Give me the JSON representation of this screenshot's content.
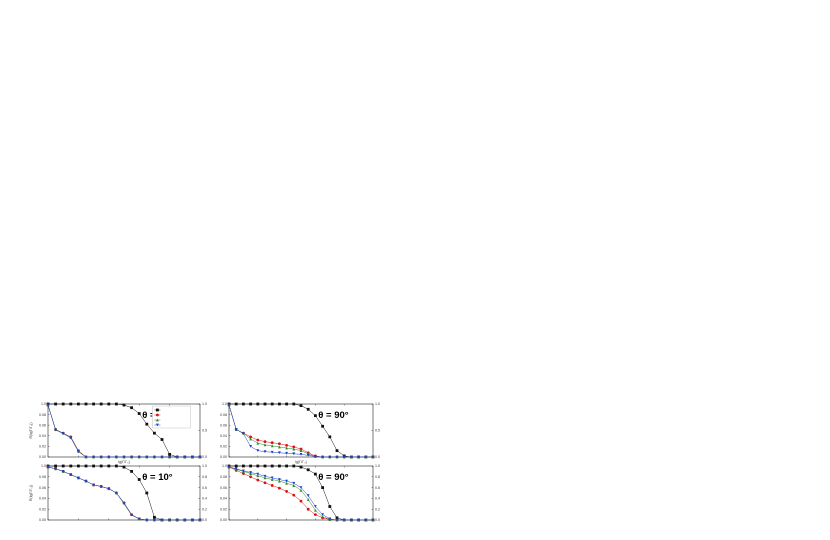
{
  "colors": {
    "black_series": "#111111",
    "red_series": "#dd1111",
    "green_series": "#2a8a2a",
    "blue_series": "#1a3fd0",
    "axis": "#222222"
  },
  "chart_data": [
    {
      "type": "line",
      "panel": "top-left",
      "angle_label": "θ = 10°",
      "xlabel": "lg(Γ/Γ₀)",
      "ylabel": "R(lg|Γ/Γ₀|)",
      "xlim": [
        -9,
        1
      ],
      "ylim": [
        0,
        1
      ],
      "y_ticks": [
        "0.00",
        "0.02",
        "0.04",
        "0.06",
        "0.08",
        "1.0"
      ],
      "right_ticks": [
        "1.0",
        "0.5",
        "0.0"
      ],
      "grid": false,
      "legend_position": "top-right",
      "legend": [
        "",
        "",
        "",
        ""
      ],
      "series": [
        {
          "color": "black",
          "marker": "square",
          "x": [
            -9,
            -8.5,
            -8,
            -7.5,
            -7,
            -6.5,
            -6,
            -5.5,
            -5,
            -4.5,
            -4,
            -3.5,
            -3,
            -2.5,
            -2,
            -1.5,
            -1,
            -0.5,
            0,
            0.5,
            1
          ],
          "y": [
            1.0,
            1.0,
            1.0,
            1.0,
            1.0,
            1.0,
            1.0,
            1.0,
            1.0,
            1.0,
            0.98,
            0.93,
            0.82,
            0.62,
            0.45,
            0.33,
            0.05,
            0.0,
            0.0,
            0.0,
            0.0
          ]
        },
        {
          "color": "red",
          "marker": "circle",
          "x": [
            -9,
            -8.5,
            -8,
            -7.5,
            -7,
            -6.5,
            -6,
            -5.5,
            -5,
            -4.5,
            -4,
            -3.5,
            -3,
            -2.5,
            -2,
            -1.5,
            -1,
            -0.5,
            0,
            0.5,
            1
          ],
          "y": [
            0.98,
            0.52,
            0.45,
            0.38,
            0.12,
            0.0,
            0.0,
            0.0,
            0.0,
            0.0,
            0.0,
            0.0,
            0.0,
            0.0,
            0.0,
            0.0,
            0.0,
            0.0,
            0.0,
            0.0,
            0.0
          ]
        },
        {
          "color": "green",
          "marker": "triangle-up",
          "x": [
            -9,
            -8.5,
            -8,
            -7.5,
            -7,
            -6.5,
            -6,
            -5.5,
            -5,
            -4.5,
            -4,
            -3.5,
            -3,
            -2.5,
            -2,
            -1.5,
            -1,
            -0.5,
            0,
            0.5,
            1
          ],
          "y": [
            0.98,
            0.52,
            0.45,
            0.37,
            0.11,
            0.0,
            0.0,
            0.0,
            0.0,
            0.0,
            0.0,
            0.0,
            0.0,
            0.0,
            0.0,
            0.0,
            0.0,
            0.0,
            0.0,
            0.0,
            0.0
          ]
        },
        {
          "color": "blue",
          "marker": "triangle-down",
          "x": [
            -9,
            -8.5,
            -8,
            -7.5,
            -7,
            -6.5,
            -6,
            -5.5,
            -5,
            -4.5,
            -4,
            -3.5,
            -3,
            -2.5,
            -2,
            -1.5,
            -1,
            -0.5,
            0,
            0.5,
            1
          ],
          "y": [
            0.98,
            0.51,
            0.44,
            0.36,
            0.1,
            0.0,
            0.0,
            0.0,
            0.0,
            0.0,
            0.0,
            0.0,
            0.0,
            0.0,
            0.0,
            0.0,
            0.0,
            0.0,
            0.0,
            0.0,
            0.0
          ]
        }
      ]
    },
    {
      "type": "line",
      "panel": "top-right",
      "angle_label": "θ = 90°",
      "xlabel": "lg(Γ/Γ₀)",
      "ylabel": "",
      "xlim": [
        -9,
        1
      ],
      "ylim": [
        0,
        1
      ],
      "y_ticks": [
        "0.00",
        "0.02",
        "0.04",
        "0.06",
        "0.08",
        "1.0"
      ],
      "right_ticks": [
        "1.0",
        "0.5",
        "0.0"
      ],
      "grid": false,
      "series": [
        {
          "color": "black",
          "marker": "square",
          "x": [
            -9,
            -8.5,
            -8,
            -7.5,
            -7,
            -6.5,
            -6,
            -5.5,
            -5,
            -4.5,
            -4,
            -3.5,
            -3,
            -2.5,
            -2,
            -1.5,
            -1,
            -0.5,
            0,
            0.5,
            1
          ],
          "y": [
            1.0,
            1.0,
            1.0,
            1.0,
            1.0,
            1.0,
            1.0,
            1.0,
            1.0,
            1.0,
            0.97,
            0.9,
            0.78,
            0.58,
            0.38,
            0.12,
            0.02,
            0.0,
            0.0,
            0.0,
            0.0
          ]
        },
        {
          "color": "red",
          "marker": "circle",
          "x": [
            -9,
            -8.5,
            -8,
            -7.5,
            -7,
            -6.5,
            -6,
            -5.5,
            -5,
            -4.5,
            -4,
            -3.5,
            -3,
            -2.5,
            -2,
            -1.5,
            -1,
            -0.5,
            0,
            0.5,
            1
          ],
          "y": [
            0.98,
            0.52,
            0.45,
            0.38,
            0.32,
            0.29,
            0.27,
            0.25,
            0.22,
            0.19,
            0.15,
            0.08,
            0.02,
            0.0,
            0.0,
            0.0,
            0.0,
            0.0,
            0.0,
            0.0,
            0.0
          ]
        },
        {
          "color": "green",
          "marker": "triangle-up",
          "x": [
            -9,
            -8.5,
            -8,
            -7.5,
            -7,
            -6.5,
            -6,
            -5.5,
            -5,
            -4.5,
            -4,
            -3.5,
            -3,
            -2.5,
            -2,
            -1.5,
            -1,
            -0.5,
            0,
            0.5,
            1
          ],
          "y": [
            0.98,
            0.52,
            0.45,
            0.34,
            0.26,
            0.23,
            0.21,
            0.19,
            0.17,
            0.15,
            0.12,
            0.06,
            0.01,
            0.0,
            0.0,
            0.0,
            0.0,
            0.0,
            0.0,
            0.0,
            0.0
          ]
        },
        {
          "color": "blue",
          "marker": "triangle-down",
          "x": [
            -9,
            -8.5,
            -8,
            -7.5,
            -7,
            -6.5,
            -6,
            -5.5,
            -5,
            -4.5,
            -4,
            -3.5,
            -3,
            -2.5,
            -2,
            -1.5,
            -1,
            -0.5,
            0,
            0.5,
            1
          ],
          "y": [
            0.98,
            0.52,
            0.44,
            0.2,
            0.12,
            0.1,
            0.09,
            0.08,
            0.07,
            0.06,
            0.05,
            0.03,
            0.01,
            0.0,
            0.0,
            0.0,
            0.0,
            0.0,
            0.0,
            0.0,
            0.0
          ]
        }
      ]
    },
    {
      "type": "line",
      "panel": "bottom-left",
      "angle_label": "θ = 10°",
      "xlabel": "",
      "ylabel": "R(lg|Γ/Γ₀|)",
      "xlim": [
        -9,
        1
      ],
      "ylim": [
        0,
        1
      ],
      "y_ticks": [
        "0.00",
        "0.02",
        "0.04",
        "0.06",
        "0.08",
        "1.0"
      ],
      "right_ticks": [
        "1.0",
        "0.8",
        "0.6",
        "0.4",
        "0.2",
        "0.0"
      ],
      "grid": false,
      "series": [
        {
          "color": "black",
          "marker": "square",
          "x": [
            -9,
            -8.5,
            -8,
            -7.5,
            -7,
            -6.5,
            -6,
            -5.5,
            -5,
            -4.5,
            -4,
            -3.5,
            -3,
            -2.5,
            -2,
            -1.5,
            -1,
            -0.5,
            0,
            0.5,
            1
          ],
          "y": [
            1.0,
            1.0,
            1.0,
            1.0,
            1.0,
            1.0,
            1.0,
            1.0,
            1.0,
            1.0,
            0.98,
            0.9,
            0.75,
            0.5,
            0.05,
            0.0,
            0.0,
            0.0,
            0.0,
            0.0,
            0.0
          ]
        },
        {
          "color": "red",
          "marker": "circle",
          "x": [
            -9,
            -8.5,
            -8,
            -7.5,
            -7,
            -6.5,
            -6,
            -5.5,
            -5,
            -4.5,
            -4,
            -3.5,
            -3,
            -2.5,
            -2,
            -1.5,
            -1,
            -0.5,
            0,
            0.5,
            1
          ],
          "y": [
            0.98,
            0.95,
            0.9,
            0.84,
            0.78,
            0.72,
            0.65,
            0.62,
            0.58,
            0.5,
            0.32,
            0.1,
            0.02,
            0.0,
            0.0,
            0.0,
            0.0,
            0.0,
            0.0,
            0.0,
            0.0
          ]
        },
        {
          "color": "green",
          "marker": "triangle-up",
          "x": [
            -9,
            -8.5,
            -8,
            -7.5,
            -7,
            -6.5,
            -6,
            -5.5,
            -5,
            -4.5,
            -4,
            -3.5,
            -3,
            -2.5,
            -2,
            -1.5,
            -1,
            -0.5,
            0,
            0.5,
            1
          ],
          "y": [
            0.98,
            0.95,
            0.9,
            0.84,
            0.78,
            0.72,
            0.65,
            0.62,
            0.58,
            0.5,
            0.32,
            0.1,
            0.02,
            0.0,
            0.0,
            0.0,
            0.0,
            0.0,
            0.0,
            0.0,
            0.0
          ]
        },
        {
          "color": "blue",
          "marker": "triangle-down",
          "x": [
            -9,
            -8.5,
            -8,
            -7.5,
            -7,
            -6.5,
            -6,
            -5.5,
            -5,
            -4.5,
            -4,
            -3.5,
            -3,
            -2.5,
            -2,
            -1.5,
            -1,
            -0.5,
            0,
            0.5,
            1
          ],
          "y": [
            0.98,
            0.95,
            0.9,
            0.84,
            0.78,
            0.72,
            0.65,
            0.62,
            0.58,
            0.5,
            0.3,
            0.09,
            0.02,
            0.0,
            0.0,
            0.0,
            0.0,
            0.0,
            0.0,
            0.0,
            0.0
          ]
        }
      ]
    },
    {
      "type": "line",
      "panel": "bottom-right",
      "angle_label": "θ = 90°",
      "xlabel": "",
      "ylabel": "",
      "xlim": [
        -9,
        1
      ],
      "ylim": [
        0,
        1
      ],
      "y_ticks": [
        "0.00",
        "0.02",
        "0.04",
        "0.06",
        "0.08",
        "1.0"
      ],
      "right_ticks": [
        "1.0",
        "0.8",
        "0.6",
        "0.4",
        "0.2",
        "0.0"
      ],
      "grid": false,
      "series": [
        {
          "color": "black",
          "marker": "square",
          "x": [
            -9,
            -8.5,
            -8,
            -7.5,
            -7,
            -6.5,
            -6,
            -5.5,
            -5,
            -4.5,
            -4,
            -3.5,
            -3,
            -2.5,
            -2,
            -1.5,
            -1,
            -0.5,
            0,
            0.5,
            1
          ],
          "y": [
            1.0,
            1.0,
            1.0,
            1.0,
            1.0,
            1.0,
            1.0,
            1.0,
            1.0,
            1.0,
            0.98,
            0.93,
            0.85,
            0.6,
            0.25,
            0.04,
            0.0,
            0.0,
            0.0,
            0.0,
            0.0
          ]
        },
        {
          "color": "red",
          "marker": "circle",
          "x": [
            -9,
            -8.5,
            -8,
            -7.5,
            -7,
            -6.5,
            -6,
            -5.5,
            -5,
            -4.5,
            -4,
            -3.5,
            -3,
            -2.5,
            -2,
            -1.5,
            -1,
            -0.5,
            0,
            0.5,
            1
          ],
          "y": [
            0.98,
            0.92,
            0.86,
            0.8,
            0.74,
            0.69,
            0.64,
            0.59,
            0.53,
            0.46,
            0.35,
            0.2,
            0.1,
            0.04,
            0.01,
            0.0,
            0.0,
            0.0,
            0.0,
            0.0,
            0.0
          ]
        },
        {
          "color": "green",
          "marker": "triangle-up",
          "x": [
            -9,
            -8.5,
            -8,
            -7.5,
            -7,
            -6.5,
            -6,
            -5.5,
            -5,
            -4.5,
            -4,
            -3.5,
            -3,
            -2.5,
            -2,
            -1.5,
            -1,
            -0.5,
            0,
            0.5,
            1
          ],
          "y": [
            0.98,
            0.94,
            0.9,
            0.86,
            0.82,
            0.78,
            0.75,
            0.72,
            0.68,
            0.64,
            0.55,
            0.38,
            0.18,
            0.06,
            0.01,
            0.0,
            0.0,
            0.0,
            0.0,
            0.0,
            0.0
          ]
        },
        {
          "color": "blue",
          "marker": "triangle-down",
          "x": [
            -9,
            -8.5,
            -8,
            -7.5,
            -7,
            -6.5,
            -6,
            -5.5,
            -5,
            -4.5,
            -4,
            -3.5,
            -3,
            -2.5,
            -2,
            -1.5,
            -1,
            -0.5,
            0,
            0.5,
            1
          ],
          "y": [
            0.98,
            0.95,
            0.91,
            0.88,
            0.85,
            0.81,
            0.78,
            0.75,
            0.72,
            0.68,
            0.6,
            0.45,
            0.25,
            0.1,
            0.02,
            0.0,
            0.0,
            0.0,
            0.0,
            0.0,
            0.0
          ]
        }
      ]
    }
  ]
}
